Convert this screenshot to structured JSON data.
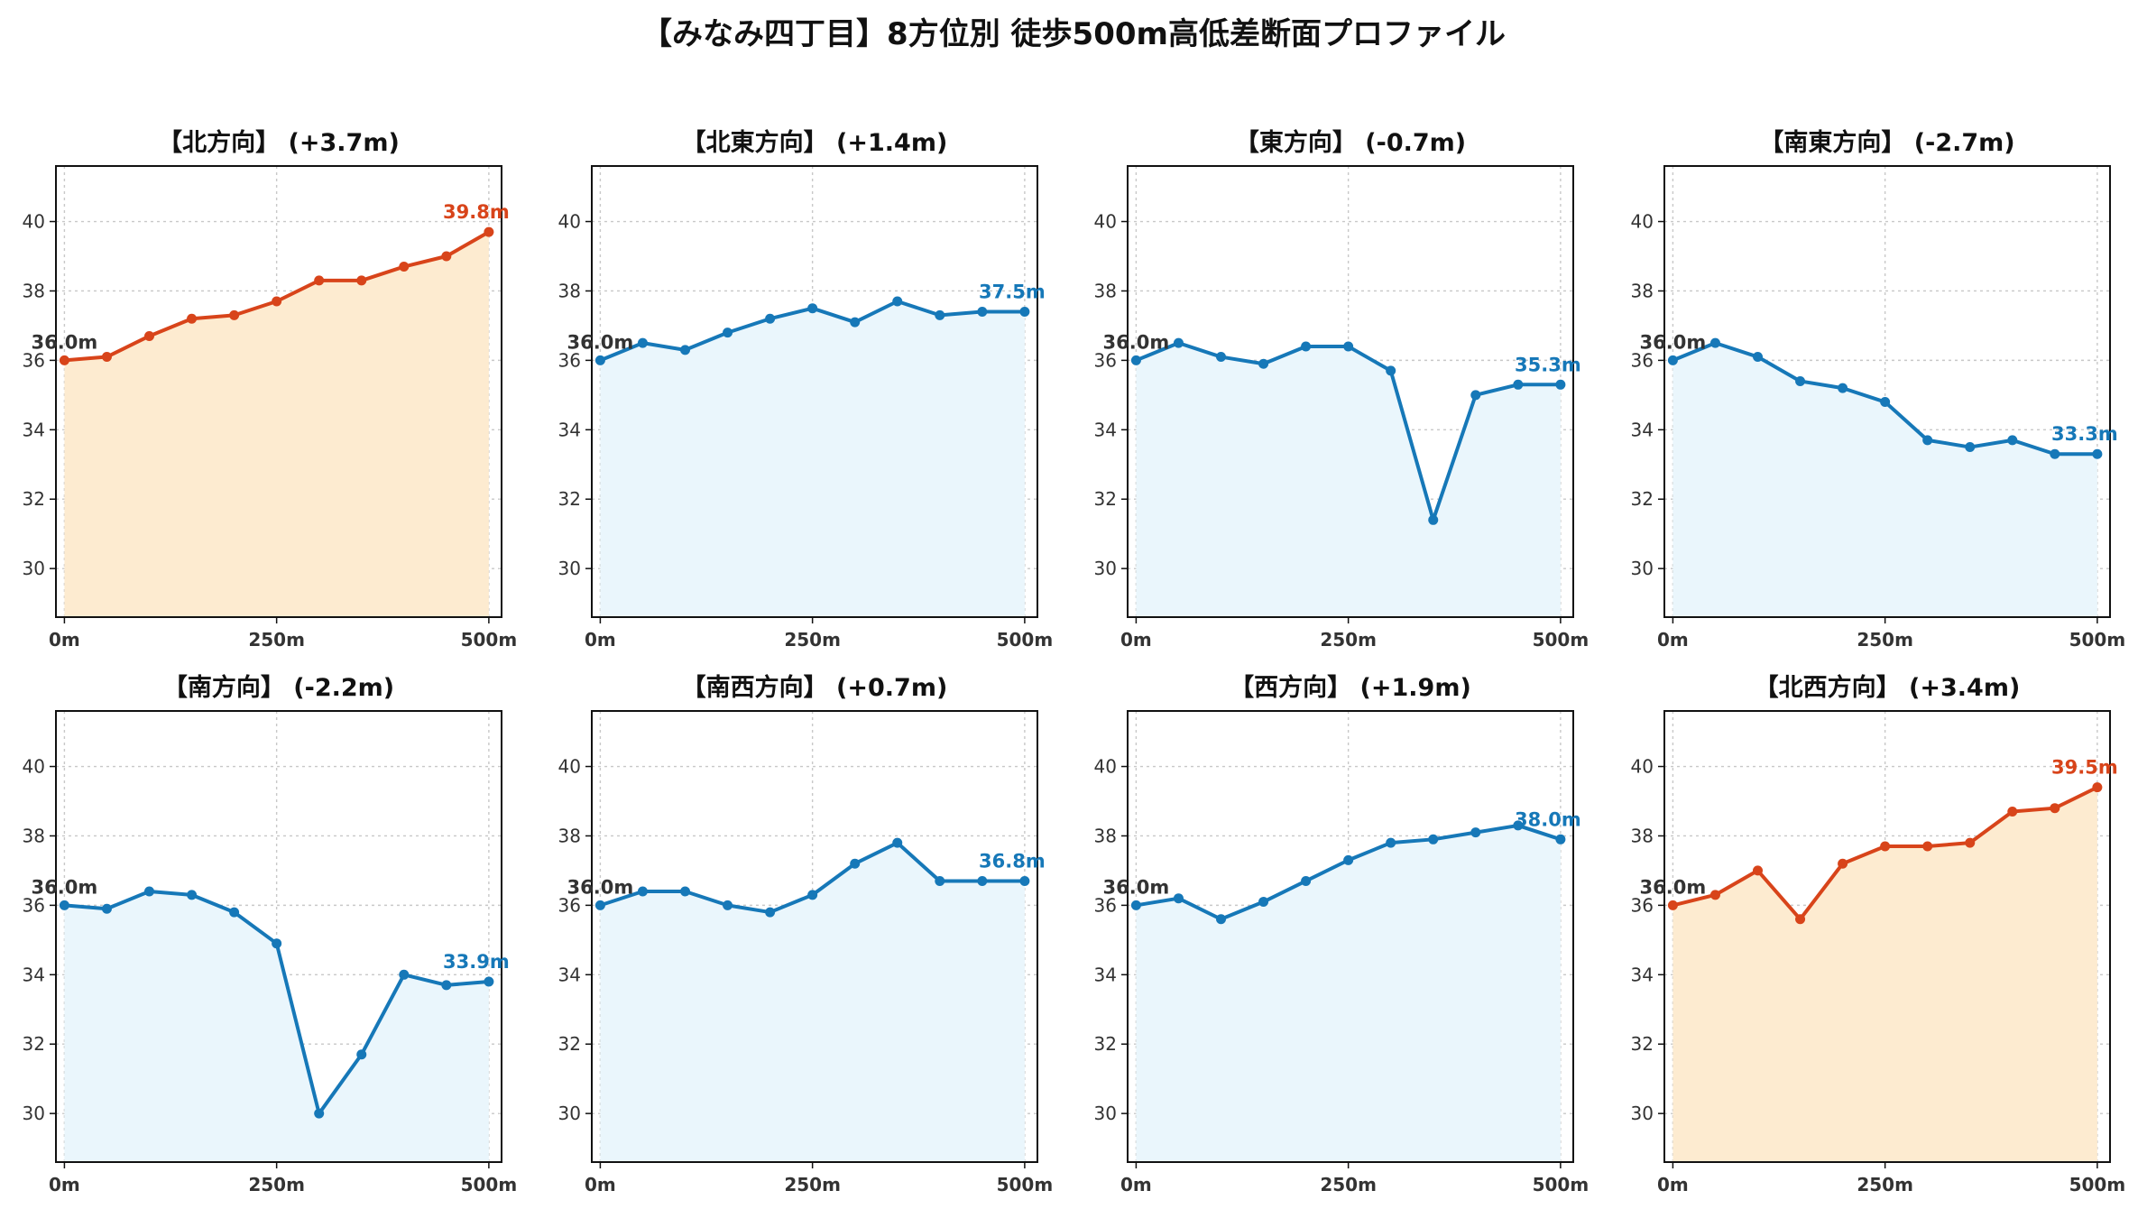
{
  "title": "【みなみ四丁目】8方位別 徒歩500m高低差断面プロファイル",
  "colors": {
    "up_line": "#d8441a",
    "up_fill": "#fdebd0",
    "down_line": "#1678b8",
    "down_fill": "#eaf6fc",
    "start_label": "#333333",
    "grid": "#c8c8c8"
  },
  "chart_data": [
    {
      "type": "line",
      "title": "【北方向】 (+3.7m)",
      "trend": "up",
      "x": [
        0,
        50,
        100,
        150,
        200,
        250,
        300,
        350,
        400,
        450,
        500
      ],
      "y": [
        36.0,
        36.1,
        36.7,
        37.2,
        37.3,
        37.7,
        38.3,
        38.3,
        38.7,
        39.0,
        39.7
      ],
      "start_label": "36.0m",
      "end_label": "39.8m"
    },
    {
      "type": "line",
      "title": "【北東方向】 (+1.4m)",
      "trend": "down",
      "x": [
        0,
        50,
        100,
        150,
        200,
        250,
        300,
        350,
        400,
        450,
        500
      ],
      "y": [
        36.0,
        36.5,
        36.3,
        36.8,
        37.2,
        37.5,
        37.1,
        37.7,
        37.3,
        37.4,
        37.4
      ],
      "start_label": "36.0m",
      "end_label": "37.5m"
    },
    {
      "type": "line",
      "title": "【東方向】 (-0.7m)",
      "trend": "down",
      "x": [
        0,
        50,
        100,
        150,
        200,
        250,
        300,
        350,
        400,
        450,
        500
      ],
      "y": [
        36.0,
        36.5,
        36.1,
        35.9,
        36.4,
        36.4,
        35.7,
        31.4,
        35.0,
        35.3,
        35.3
      ],
      "start_label": "36.0m",
      "end_label": "35.3m"
    },
    {
      "type": "line",
      "title": "【南東方向】 (-2.7m)",
      "trend": "down",
      "x": [
        0,
        50,
        100,
        150,
        200,
        250,
        300,
        350,
        400,
        450,
        500
      ],
      "y": [
        36.0,
        36.5,
        36.1,
        35.4,
        35.2,
        34.8,
        33.7,
        33.5,
        33.7,
        33.3,
        33.3
      ],
      "start_label": "36.0m",
      "end_label": "33.3m"
    },
    {
      "type": "line",
      "title": "【南方向】 (-2.2m)",
      "trend": "down",
      "x": [
        0,
        50,
        100,
        150,
        200,
        250,
        300,
        350,
        400,
        450,
        500
      ],
      "y": [
        36.0,
        35.9,
        36.4,
        36.3,
        35.8,
        34.9,
        30.0,
        31.7,
        34.0,
        33.7,
        33.8
      ],
      "start_label": "36.0m",
      "end_label": "33.9m"
    },
    {
      "type": "line",
      "title": "【南西方向】 (+0.7m)",
      "trend": "down",
      "x": [
        0,
        50,
        100,
        150,
        200,
        250,
        300,
        350,
        400,
        450,
        500
      ],
      "y": [
        36.0,
        36.4,
        36.4,
        36.0,
        35.8,
        36.3,
        37.2,
        37.8,
        36.7,
        36.7,
        36.7
      ],
      "start_label": "36.0m",
      "end_label": "36.8m"
    },
    {
      "type": "line",
      "title": "【西方向】 (+1.9m)",
      "trend": "down",
      "x": [
        0,
        50,
        100,
        150,
        200,
        250,
        300,
        350,
        400,
        450,
        500
      ],
      "y": [
        36.0,
        36.2,
        35.6,
        36.1,
        36.7,
        37.3,
        37.8,
        37.9,
        38.1,
        38.3,
        37.9
      ],
      "start_label": "36.0m",
      "end_label": "38.0m"
    },
    {
      "type": "line",
      "title": "【北西方向】 (+3.4m)",
      "trend": "up",
      "x": [
        0,
        50,
        100,
        150,
        200,
        250,
        300,
        350,
        400,
        450,
        500
      ],
      "y": [
        36.0,
        36.3,
        37.0,
        35.6,
        37.2,
        37.7,
        37.7,
        37.8,
        38.7,
        38.8,
        39.4
      ],
      "start_label": "36.0m",
      "end_label": "39.5m"
    }
  ],
  "axes": {
    "xlim": [
      -10,
      515
    ],
    "ylim": [
      28.6,
      41.6
    ],
    "yticks": [
      30,
      32,
      34,
      36,
      38,
      40
    ],
    "xticks": [
      0,
      250,
      500
    ],
    "xtick_labels": [
      "0m",
      "250m",
      "500m"
    ],
    "grid": true
  }
}
